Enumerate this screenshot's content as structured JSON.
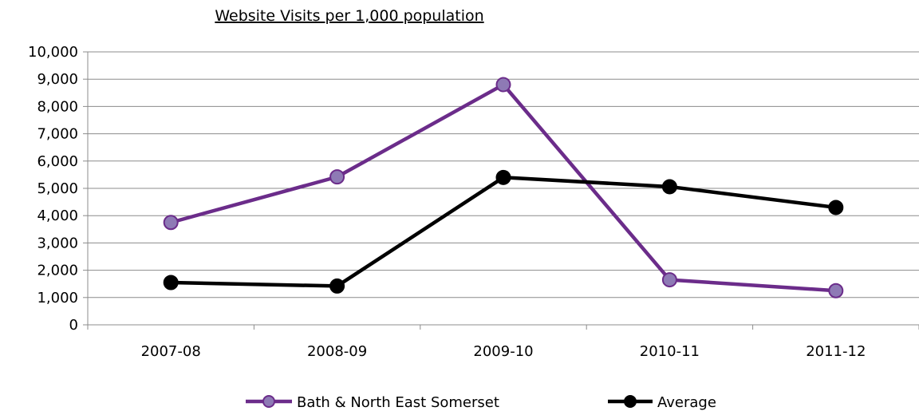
{
  "chart_data": {
    "type": "line",
    "title": "Website Visits per 1,000 population",
    "xlabel": "",
    "ylabel": "",
    "categories": [
      "2007-08",
      "2008-09",
      "2009-10",
      "2010-11",
      "2011-12"
    ],
    "ylim": [
      0,
      10000
    ],
    "yticks": [
      0,
      1000,
      2000,
      3000,
      4000,
      5000,
      6000,
      7000,
      8000,
      9000,
      10000
    ],
    "ytick_labels": [
      "0",
      "1,000",
      "2,000",
      "3,000",
      "4,000",
      "5,000",
      "6,000",
      "7,000",
      "8,000",
      "9,000",
      "10,000"
    ],
    "grid": true,
    "legend_position": "bottom",
    "series": [
      {
        "name": "Bath & North East Somerset",
        "values": [
          3750,
          5420,
          8800,
          1650,
          1250
        ],
        "color": "#6b2c8a",
        "marker_fill": "#8e7ab5"
      },
      {
        "name": "Average",
        "values": [
          1550,
          1420,
          5400,
          5060,
          4300
        ],
        "color": "#000000",
        "marker_fill": "#000000"
      }
    ]
  }
}
